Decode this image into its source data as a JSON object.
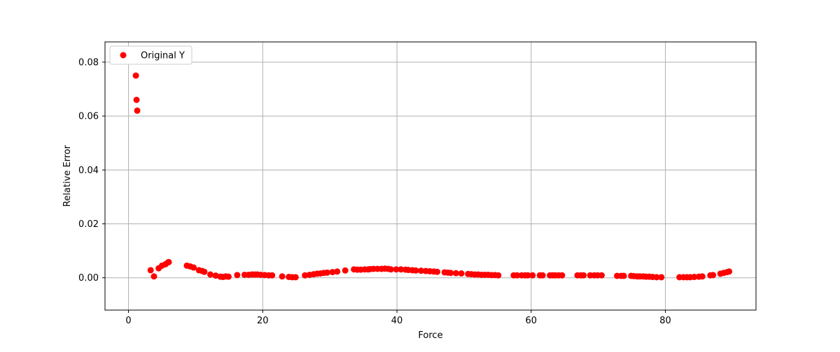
{
  "chart_data": {
    "type": "scatter",
    "title": "",
    "xlabel": "Force",
    "ylabel": "Relative Error",
    "xlim": [
      -3.5,
      93.5
    ],
    "ylim": [
      -0.012,
      0.0875
    ],
    "xticks": [
      0,
      20,
      40,
      60,
      80
    ],
    "yticks": [
      0.0,
      0.02,
      0.04,
      0.06,
      0.08
    ],
    "xtick_labels": [
      "0",
      "20",
      "40",
      "60",
      "80"
    ],
    "ytick_labels": [
      "0.00",
      "0.02",
      "0.04",
      "0.06",
      "0.08"
    ],
    "grid": true,
    "legend_position": "top-left",
    "series": [
      {
        "name": "Original Y",
        "color": "#ff0000",
        "marker": "circle",
        "x": [
          1.1,
          1.2,
          1.3,
          3.3,
          3.8,
          4.5,
          5.0,
          5.5,
          5.9,
          6.0,
          8.7,
          9.2,
          9.7,
          10.5,
          11.0,
          11.3,
          12.2,
          13.0,
          13.7,
          14.1,
          14.5,
          14.9,
          16.2,
          17.3,
          17.9,
          18.4,
          18.8,
          19.2,
          19.7,
          20.3,
          20.9,
          21.4,
          22.9,
          23.9,
          24.4,
          24.9,
          26.3,
          27.0,
          27.6,
          28.1,
          28.6,
          29.1,
          29.6,
          30.4,
          31.1,
          32.3,
          33.6,
          34.1,
          34.6,
          35.2,
          35.7,
          36.0,
          36.5,
          37.1,
          37.7,
          38.2,
          38.7,
          39.1,
          39.9,
          40.6,
          41.3,
          41.7,
          42.3,
          42.8,
          43.6,
          44.3,
          44.9,
          45.5,
          46.0,
          47.1,
          47.6,
          48.0,
          48.8,
          49.6,
          50.6,
          51.1,
          51.6,
          52.1,
          52.6,
          53.1,
          53.6,
          54.1,
          54.6,
          55.1,
          57.4,
          57.9,
          58.6,
          59.1,
          59.5,
          60.2,
          61.3,
          61.7,
          62.8,
          63.2,
          63.6,
          64.1,
          64.6,
          66.9,
          67.4,
          67.8,
          68.8,
          69.4,
          69.9,
          70.5,
          72.8,
          73.4,
          73.8,
          74.9,
          75.3,
          75.8,
          76.2,
          76.7,
          77.1,
          77.6,
          78.1,
          78.7,
          79.4,
          82.1,
          82.7,
          83.2,
          83.7,
          84.3,
          85.0,
          85.5,
          86.7,
          87.1,
          88.2,
          88.7,
          89.2,
          89.5
        ],
        "y": [
          0.075,
          0.066,
          0.062,
          0.0028,
          0.0005,
          0.0035,
          0.0045,
          0.005,
          0.0057,
          0.0058,
          0.0045,
          0.0042,
          0.0038,
          0.0028,
          0.0025,
          0.0022,
          0.0012,
          0.0008,
          0.0004,
          0.0003,
          0.0005,
          0.0004,
          0.001,
          0.0011,
          0.0011,
          0.0012,
          0.0012,
          0.0012,
          0.0011,
          0.001,
          0.0009,
          0.0009,
          0.0005,
          0.0003,
          0.0002,
          0.0002,
          0.0009,
          0.0011,
          0.0013,
          0.0015,
          0.0016,
          0.0018,
          0.0019,
          0.0021,
          0.0023,
          0.0027,
          0.0031,
          0.003,
          0.003,
          0.0031,
          0.0031,
          0.0032,
          0.0033,
          0.0033,
          0.0033,
          0.0034,
          0.0033,
          0.0031,
          0.0031,
          0.0031,
          0.003,
          0.0029,
          0.0028,
          0.0027,
          0.0026,
          0.0025,
          0.0024,
          0.0023,
          0.0022,
          0.002,
          0.0019,
          0.0018,
          0.0017,
          0.0016,
          0.0014,
          0.0013,
          0.0012,
          0.0012,
          0.0011,
          0.0011,
          0.0011,
          0.001,
          0.001,
          0.0009,
          0.0009,
          0.0009,
          0.0009,
          0.0009,
          0.0009,
          0.0009,
          0.0009,
          0.0009,
          0.0009,
          0.0009,
          0.0009,
          0.0009,
          0.0009,
          0.0009,
          0.0009,
          0.0009,
          0.0009,
          0.0009,
          0.0009,
          0.0009,
          0.0007,
          0.0007,
          0.0007,
          0.0007,
          0.0006,
          0.0005,
          0.0005,
          0.0005,
          0.0004,
          0.0004,
          0.0003,
          0.0002,
          0.0002,
          0.0002,
          0.0002,
          0.0002,
          0.0002,
          0.0003,
          0.0004,
          0.0005,
          0.0009,
          0.001,
          0.0015,
          0.0018,
          0.0021,
          0.0023
        ]
      }
    ]
  }
}
